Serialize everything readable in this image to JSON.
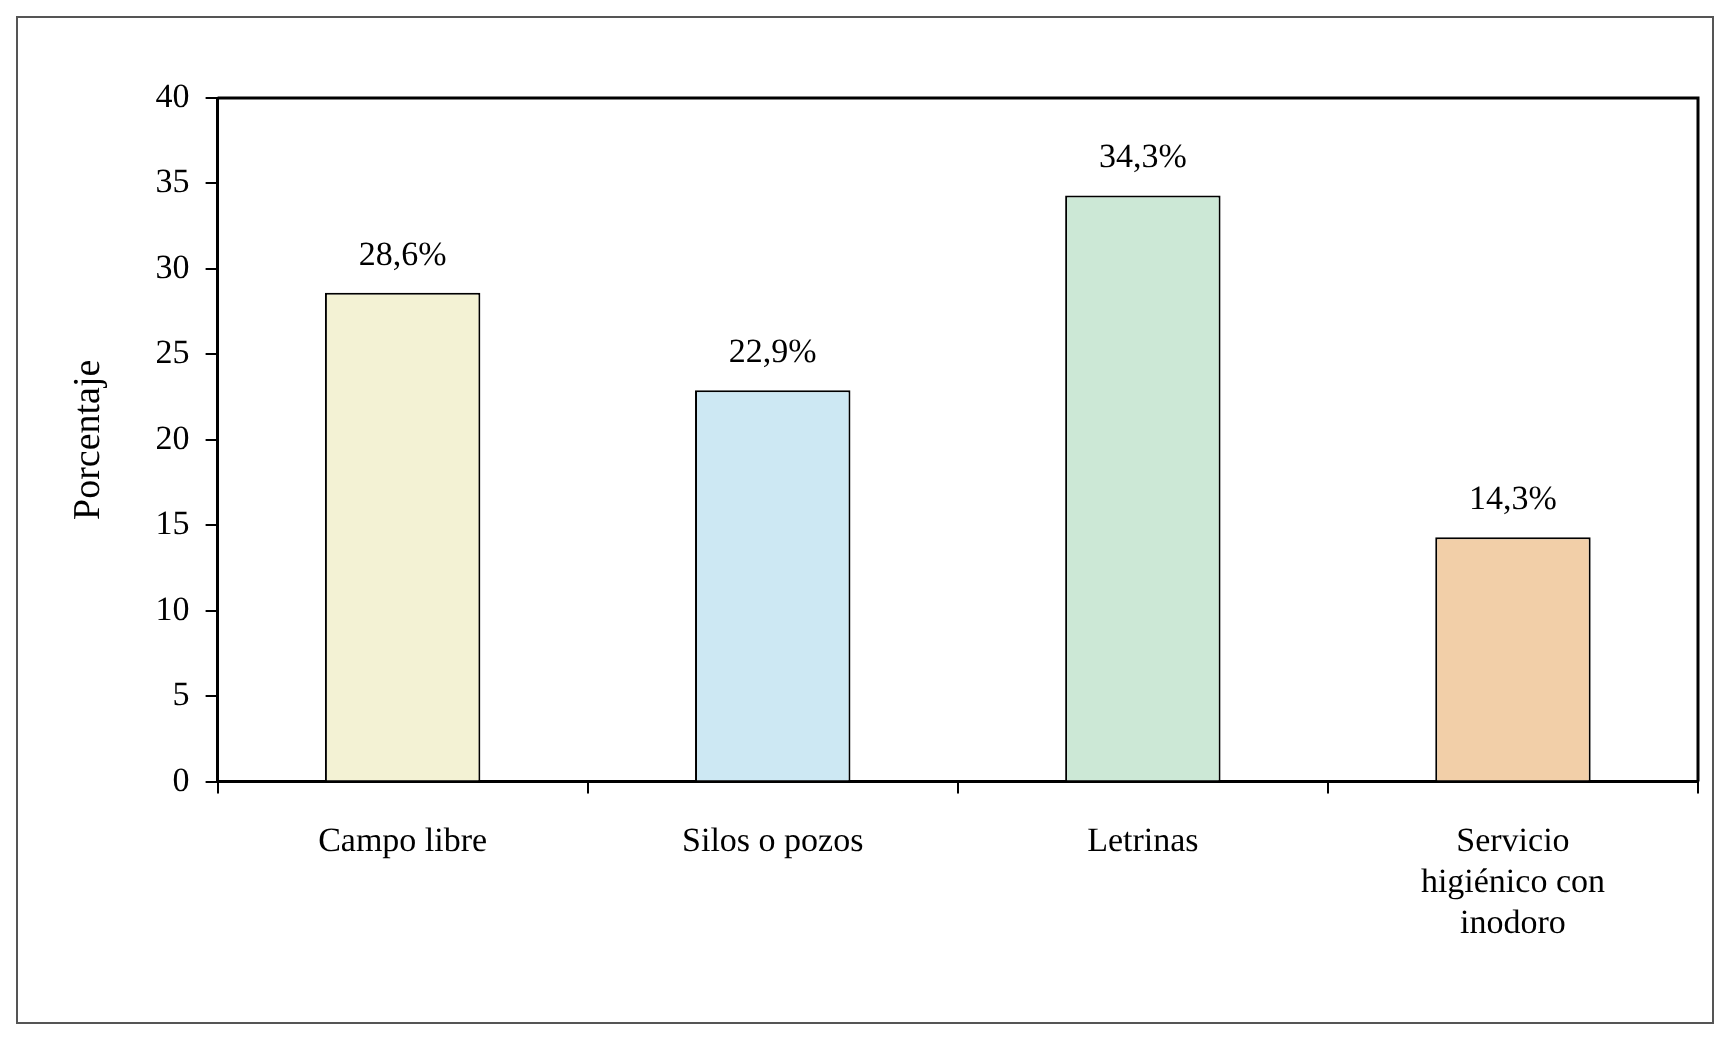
{
  "chart_data": {
    "type": "bar",
    "ylabel": "Porcentaje",
    "categories": [
      "Campo libre",
      "Silos o pozos",
      "Letrinas",
      "Servicio higiénico con inodoro"
    ],
    "values": [
      28.6,
      22.9,
      34.3,
      14.3
    ],
    "colors": [
      "#f3f2d4",
      "#cde8f3",
      "#cce8d6",
      "#f2cfa8"
    ],
    "value_labels": [
      "28,6%",
      "22,9%",
      "34,3%",
      "14,3%"
    ],
    "ylim": [
      0,
      40
    ],
    "yticks": [
      0,
      5,
      10,
      15,
      20,
      25,
      30,
      35,
      40
    ],
    "grid": false,
    "legend": false
  }
}
